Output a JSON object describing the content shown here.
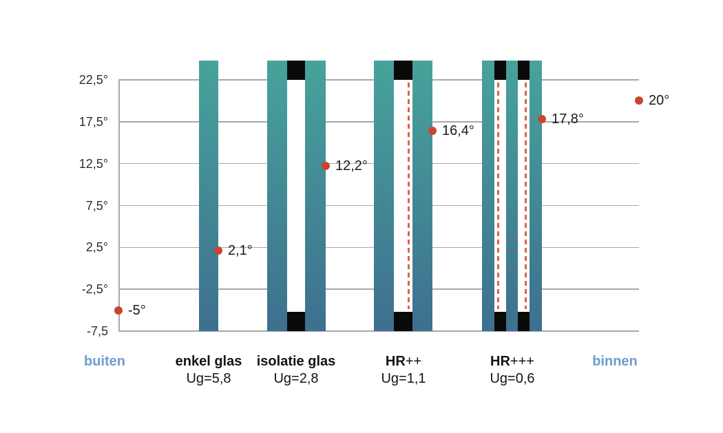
{
  "colors": {
    "glass_gradient_top": "#47A39B",
    "glass_gradient_bottom": "#3E6F8F",
    "spacer_black": "#0A0A0A",
    "point_red": "#C94532",
    "coating_dash_red": "#E0614E",
    "gridline_gray": "#A9A9A9",
    "axis_text": "#2E2E2E",
    "category_text": "#141414",
    "inout_label_blue": "#6D9CCC"
  },
  "chart_data": {
    "type": "scatter",
    "title": "",
    "xlabel": "",
    "ylabel": "",
    "ylim": [
      -7.5,
      22.5
    ],
    "grid": true,
    "legend": false,
    "y_ticks": [
      {
        "value": 22.5,
        "label": "22,5°"
      },
      {
        "value": 17.5,
        "label": "17,5°"
      },
      {
        "value": 12.5,
        "label": "12,5°"
      },
      {
        "value": 7.5,
        "label": "7,5°"
      },
      {
        "value": 2.5,
        "label": "2,5°"
      },
      {
        "value": -2.5,
        "label": "-2,5°"
      },
      {
        "value": -7.5,
        "label": "-7,5"
      }
    ],
    "categories": [
      {
        "name": "buiten",
        "name_bold": "buiten",
        "name_light": "",
        "sublabel": "",
        "style": "blue",
        "temp": -5,
        "temp_label": "-5°",
        "glazing": null
      },
      {
        "name": "enkel glas",
        "name_bold": "enkel glas",
        "name_light": "",
        "sublabel": "Ug=5,8",
        "style": "black",
        "temp": 2.1,
        "temp_label": "2,1°",
        "glazing": {
          "panes": 1,
          "coatings": []
        }
      },
      {
        "name": "isolatie glas",
        "name_bold": "isolatie glas",
        "name_light": "",
        "sublabel": "Ug=2,8",
        "style": "black",
        "temp": 12.2,
        "temp_label": "12,2°",
        "glazing": {
          "panes": 2,
          "coatings": [
            null
          ]
        }
      },
      {
        "name": "HR++",
        "name_bold": "HR",
        "name_light": "++",
        "sublabel": "Ug=1,1",
        "style": "black",
        "temp": 16.4,
        "temp_label": "16,4°",
        "glazing": {
          "panes": 2,
          "coatings": [
            "right"
          ]
        }
      },
      {
        "name": "HR+++",
        "name_bold": "HR",
        "name_light": "+++",
        "sublabel": "Ug=0,6",
        "style": "black",
        "temp": 17.8,
        "temp_label": "17,8°",
        "glazing": {
          "panes": 3,
          "coatings": [
            "left",
            "right"
          ]
        }
      },
      {
        "name": "binnen",
        "name_bold": "binnen",
        "name_light": "",
        "sublabel": "",
        "style": "blue",
        "temp": 20,
        "temp_label": "20°",
        "glazing": null
      }
    ]
  }
}
